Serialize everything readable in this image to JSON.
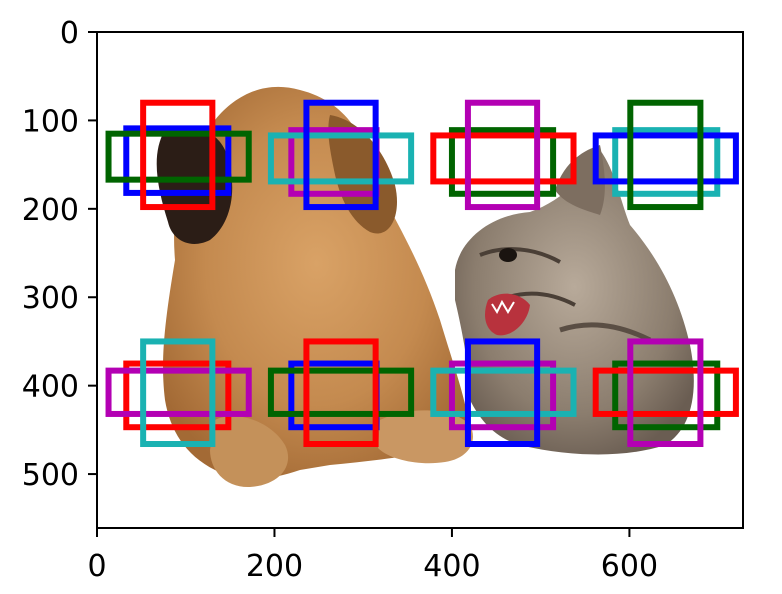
{
  "chart_data": {
    "type": "image-with-bounding-boxes",
    "title": "",
    "xlabel": "",
    "ylabel": "",
    "xlim": [
      0,
      728
    ],
    "ylim": [
      561,
      0
    ],
    "x_ticks": [
      0,
      200,
      400,
      600
    ],
    "y_ticks": [
      0,
      100,
      200,
      300,
      400,
      500
    ],
    "x_tick_labels": [
      "0",
      "200",
      "400",
      "600"
    ],
    "y_tick_labels": [
      "0",
      "100",
      "200",
      "300",
      "400",
      "500"
    ],
    "image_subject": "puppy and kitten",
    "colors": {
      "blue": "#0000ff",
      "green": "#006400",
      "red": "#ff0000",
      "magenta": "#b300b3",
      "cyan": "#1ab2b2"
    },
    "boxes": [
      {
        "color": "blue",
        "x0": 33,
        "y0": 109,
        "x1": 148,
        "y1": 182
      },
      {
        "color": "green",
        "x0": 13,
        "y0": 115,
        "x1": 171,
        "y1": 167
      },
      {
        "color": "red",
        "x0": 52,
        "y0": 80,
        "x1": 130,
        "y1": 198
      },
      {
        "color": "magenta",
        "x0": 219,
        "y0": 111,
        "x1": 315,
        "y1": 183
      },
      {
        "color": "cyan",
        "x0": 196,
        "y0": 117,
        "x1": 354,
        "y1": 169
      },
      {
        "color": "blue",
        "x0": 236,
        "y0": 80,
        "x1": 314,
        "y1": 198
      },
      {
        "color": "green",
        "x0": 400,
        "y0": 111,
        "x1": 514,
        "y1": 183
      },
      {
        "color": "red",
        "x0": 379,
        "y0": 117,
        "x1": 537,
        "y1": 169
      },
      {
        "color": "magenta",
        "x0": 418,
        "y0": 80,
        "x1": 496,
        "y1": 198
      },
      {
        "color": "cyan",
        "x0": 584,
        "y0": 111,
        "x1": 699,
        "y1": 183
      },
      {
        "color": "blue",
        "x0": 562,
        "y0": 117,
        "x1": 720,
        "y1": 169
      },
      {
        "color": "green",
        "x0": 601,
        "y0": 80,
        "x1": 680,
        "y1": 198
      },
      {
        "color": "red",
        "x0": 33,
        "y0": 375,
        "x1": 148,
        "y1": 447
      },
      {
        "color": "magenta",
        "x0": 13,
        "y0": 383,
        "x1": 171,
        "y1": 432
      },
      {
        "color": "cyan",
        "x0": 52,
        "y0": 350,
        "x1": 130,
        "y1": 466
      },
      {
        "color": "blue",
        "x0": 219,
        "y0": 375,
        "x1": 315,
        "y1": 447
      },
      {
        "color": "green",
        "x0": 196,
        "y0": 383,
        "x1": 354,
        "y1": 432
      },
      {
        "color": "red",
        "x0": 236,
        "y0": 350,
        "x1": 314,
        "y1": 466
      },
      {
        "color": "magenta",
        "x0": 400,
        "y0": 375,
        "x1": 514,
        "y1": 447
      },
      {
        "color": "cyan",
        "x0": 379,
        "y0": 383,
        "x1": 537,
        "y1": 432
      },
      {
        "color": "blue",
        "x0": 418,
        "y0": 350,
        "x1": 496,
        "y1": 466
      },
      {
        "color": "green",
        "x0": 584,
        "y0": 375,
        "x1": 699,
        "y1": 447
      },
      {
        "color": "red",
        "x0": 562,
        "y0": 383,
        "x1": 720,
        "y1": 432
      },
      {
        "color": "magenta",
        "x0": 601,
        "y0": 350,
        "x1": 680,
        "y1": 466
      }
    ]
  }
}
